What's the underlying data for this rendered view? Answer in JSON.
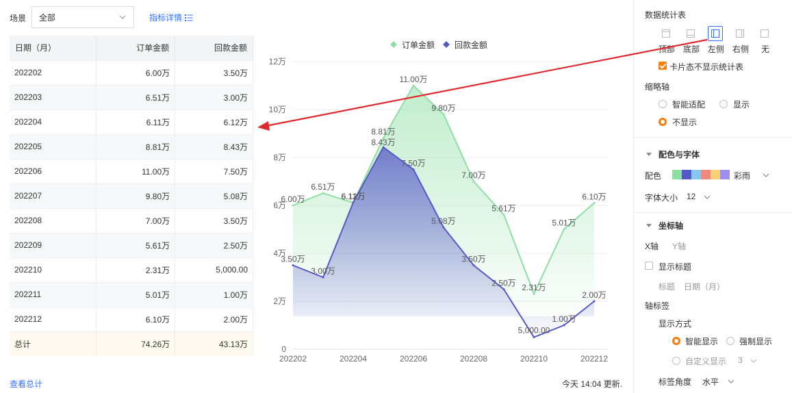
{
  "toolbar": {
    "scene_label": "场景",
    "scene_value": "全部",
    "detail_link": "指标详情"
  },
  "table": {
    "headers": [
      "日期（月）",
      "订单金额",
      "回款金额"
    ],
    "rows": [
      [
        "202202",
        "6.00万",
        "3.50万"
      ],
      [
        "202203",
        "6.51万",
        "3.00万"
      ],
      [
        "202204",
        "6.11万",
        "6.12万"
      ],
      [
        "202205",
        "8.81万",
        "8.43万"
      ],
      [
        "202206",
        "11.00万",
        "7.50万"
      ],
      [
        "202207",
        "9.80万",
        "5.08万"
      ],
      [
        "202208",
        "7.00万",
        "3.50万"
      ],
      [
        "202209",
        "5.61万",
        "2.50万"
      ],
      [
        "202210",
        "2.31万",
        "5,000.00"
      ],
      [
        "202211",
        "5.01万",
        "1.00万"
      ],
      [
        "202212",
        "6.10万",
        "2.00万"
      ]
    ],
    "total": [
      "总计",
      "74.26万",
      "43.13万"
    ]
  },
  "footer": {
    "view_total": "查看总计",
    "update_time": "今天 14:04 更新."
  },
  "chart_data": {
    "type": "area",
    "categories": [
      "202202",
      "202203",
      "202204",
      "202205",
      "202206",
      "202207",
      "202208",
      "202209",
      "202210",
      "202211",
      "202212"
    ],
    "x_tick_labels": [
      "202202",
      "202204",
      "202206",
      "202208",
      "202210",
      "202212"
    ],
    "y_tick_labels": [
      "0",
      "2万",
      "4万",
      "6万",
      "8万",
      "10万",
      "12万"
    ],
    "ylim": [
      0,
      120000
    ],
    "grid": true,
    "legend_position": "top-center",
    "series": [
      {
        "name": "订单金额",
        "color": "#8fdea5",
        "values": [
          60000,
          65100,
          61100,
          88100,
          110000,
          98000,
          70000,
          56100,
          23100,
          50100,
          61000
        ],
        "labels": [
          "6.00万",
          "6.51万",
          "6.11万",
          "8.81万",
          "11.00万",
          "9.80万",
          "7.00万",
          "5.61万",
          "2.31万",
          "5.01万",
          "6.10万"
        ]
      },
      {
        "name": "回款金额",
        "color": "#5558c7",
        "values": [
          35000,
          30000,
          61200,
          84300,
          75000,
          50800,
          35000,
          25000,
          5000,
          10000,
          20000
        ],
        "labels": [
          "3.50万",
          "3.00万",
          "6.12万",
          "8.43万",
          "7.50万",
          "5.08万",
          "3.50万",
          "2.50万",
          "5,000.00",
          "1.00万",
          "2.00万"
        ]
      }
    ]
  },
  "panel": {
    "stats_title": "数据统计表",
    "positions": [
      "顶部",
      "底部",
      "左侧",
      "右侧",
      "无"
    ],
    "selected_position": "左侧",
    "card_hide_label": "卡片态不显示统计表",
    "thumbnail_title": "缩略轴",
    "thumbnail_options": [
      "智能适配",
      "显示",
      "不显示"
    ],
    "color_font_title": "配色与字体",
    "palette_label": "配色",
    "palette_name": "彩雨",
    "palette_colors": [
      "#8fdea5",
      "#5558c7",
      "#88c8f0",
      "#f08a7e",
      "#f9d07a",
      "#9c8ff0"
    ],
    "font_size_label": "字体大小",
    "font_size_value": "12",
    "axis_title": "坐标轴",
    "axis_tabs": [
      "X轴",
      "Y轴"
    ],
    "show_title_label": "显示标题",
    "title_label": "标题",
    "title_value": "日期（月）",
    "axis_label_title": "轴标签",
    "display_mode_label": "显示方式",
    "display_options": [
      "智能显示",
      "强制显示",
      "自定义显示"
    ],
    "custom_count": "3",
    "label_angle_label": "标签角度",
    "label_angle_value": "水平",
    "arrow_color": "#e0282e"
  }
}
